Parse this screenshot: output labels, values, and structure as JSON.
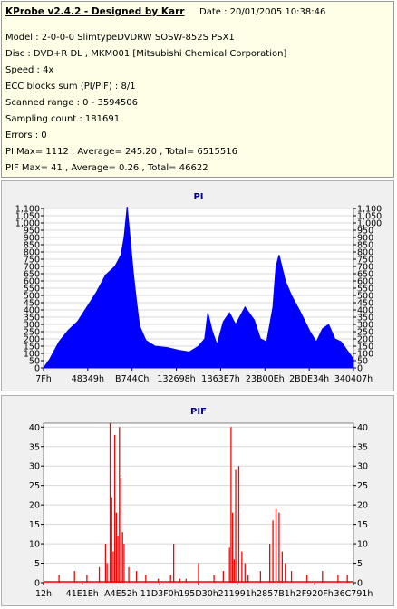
{
  "info": {
    "title": "KProbe v2.4.2 - Designed by Karr",
    "date": "Date : 20/01/2005 10:38:46",
    "lines": [
      "Model : 2-0-0-0 SlimtypeDVDRW SOSW-852S  PSX1",
      "Disc : DVD+R DL , MKM001 [Mitsubishi Chemical Corporation]",
      "Speed : 4x",
      "ECC blocks sum (PI/PIF) : 8/1",
      "Scanned range : 0 - 3594506",
      "Sampling count : 181691",
      "Errors : 0",
      "PI Max= 1112 , Average= 245.20 , Total= 6515516",
      "PIF Max= 41 , Average= 0.26 , Total= 46622"
    ]
  },
  "chart_data": [
    {
      "type": "area",
      "title": "PI",
      "color": "#0000ff",
      "ylim": [
        0,
        1100
      ],
      "yticks": [
        0,
        50,
        100,
        150,
        200,
        250,
        300,
        350,
        400,
        450,
        500,
        550,
        600,
        650,
        700,
        750,
        800,
        850,
        900,
        950,
        1000,
        1050,
        1100
      ],
      "ytick_labels": [
        "0",
        "50",
        "100",
        "150",
        "200",
        "250",
        "300",
        "350",
        "400",
        "450",
        "500",
        "550",
        "600",
        "650",
        "700",
        "750",
        "800",
        "850",
        "900",
        "950",
        "1,000",
        "1,050",
        "1,100"
      ],
      "xtick_labels": [
        "7Fh",
        "48349h",
        "B744Ch",
        "132698h",
        "1B63E7h",
        "23B00Eh",
        "2BDE34h",
        "340407h"
      ],
      "x": [
        0,
        0.02,
        0.05,
        0.08,
        0.11,
        0.14,
        0.17,
        0.2,
        0.23,
        0.25,
        0.26,
        0.27,
        0.28,
        0.29,
        0.3,
        0.31,
        0.33,
        0.36,
        0.4,
        0.44,
        0.47,
        0.5,
        0.52,
        0.53,
        0.545,
        0.56,
        0.58,
        0.6,
        0.62,
        0.65,
        0.68,
        0.7,
        0.72,
        0.74,
        0.75,
        0.76,
        0.78,
        0.8,
        0.83,
        0.86,
        0.88,
        0.9,
        0.92,
        0.94,
        0.96,
        0.98,
        1.0
      ],
      "values": [
        0,
        60,
        180,
        260,
        320,
        420,
        520,
        640,
        700,
        780,
        900,
        1112,
        880,
        650,
        460,
        290,
        190,
        150,
        140,
        120,
        110,
        150,
        200,
        380,
        250,
        160,
        320,
        380,
        300,
        420,
        330,
        200,
        180,
        420,
        700,
        780,
        600,
        500,
        380,
        250,
        180,
        270,
        300,
        200,
        180,
        120,
        60
      ]
    },
    {
      "type": "bar",
      "title": "PIF",
      "color": "#ff0000",
      "ylim": [
        0,
        41
      ],
      "yticks": [
        0,
        5,
        10,
        15,
        20,
        25,
        30,
        35,
        40
      ],
      "ytick_labels": [
        "0",
        "5",
        "10",
        "15",
        "20",
        "25",
        "30",
        "35",
        "40"
      ],
      "xtick_labels": [
        "12h",
        "41E1Eh",
        "A4E52h",
        "11D3F0h",
        "195D30h",
        "211991h",
        "2857B1h",
        "2F920Fh",
        "36C791h"
      ],
      "x": [
        0.05,
        0.1,
        0.14,
        0.18,
        0.2,
        0.205,
        0.215,
        0.22,
        0.225,
        0.23,
        0.235,
        0.24,
        0.245,
        0.25,
        0.255,
        0.26,
        0.275,
        0.3,
        0.33,
        0.37,
        0.41,
        0.42,
        0.44,
        0.46,
        0.5,
        0.55,
        0.58,
        0.6,
        0.605,
        0.61,
        0.615,
        0.62,
        0.63,
        0.64,
        0.65,
        0.66,
        0.7,
        0.73,
        0.74,
        0.75,
        0.76,
        0.77,
        0.78,
        0.8,
        0.85,
        0.9,
        0.95,
        0.98
      ],
      "values": [
        2,
        3,
        2,
        4,
        10,
        5,
        41,
        22,
        8,
        38,
        18,
        12,
        40,
        27,
        13,
        10,
        4,
        3,
        2,
        1,
        2,
        10,
        1,
        1,
        5,
        2,
        3,
        9,
        40,
        18,
        6,
        29,
        30,
        8,
        5,
        2,
        3,
        10,
        16,
        19,
        18,
        8,
        5,
        3,
        2,
        3,
        2,
        2
      ]
    }
  ]
}
